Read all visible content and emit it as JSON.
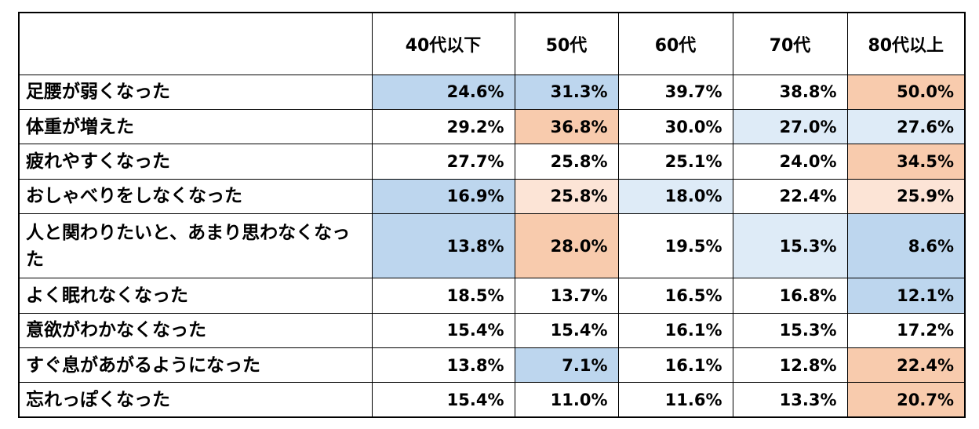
{
  "chart_data": {
    "type": "table",
    "columns": [
      "40代以下",
      "50代",
      "60代",
      "70代",
      "80代以上"
    ],
    "rows": [
      {
        "label": "足腰が弱くなった",
        "values": [
          "24.6%",
          "31.3%",
          "39.7%",
          "38.8%",
          "50.0%"
        ],
        "shade": [
          "blue",
          "blue",
          "",
          "",
          "orange"
        ]
      },
      {
        "label": "体重が増えた",
        "values": [
          "29.2%",
          "36.8%",
          "30.0%",
          "27.0%",
          "27.6%"
        ],
        "shade": [
          "",
          "orange",
          "",
          "lightblue",
          "lightblue"
        ]
      },
      {
        "label": "疲れやすくなった",
        "values": [
          "27.7%",
          "25.8%",
          "25.1%",
          "24.0%",
          "34.5%"
        ],
        "shade": [
          "",
          "",
          "",
          "",
          "orange"
        ]
      },
      {
        "label": "おしゃべりをしなくなった",
        "values": [
          "16.9%",
          "25.8%",
          "18.0%",
          "22.4%",
          "25.9%"
        ],
        "shade": [
          "blue",
          "lightorange",
          "lightblue",
          "",
          "lightorange"
        ]
      },
      {
        "label": "人と関わりたいと、あまり思わなくなった",
        "values": [
          "13.8%",
          "28.0%",
          "19.5%",
          "15.3%",
          "8.6%"
        ],
        "shade": [
          "blue",
          "orange",
          "",
          "lightblue",
          "blue"
        ]
      },
      {
        "label": "よく眠れなくなった",
        "values": [
          "18.5%",
          "13.7%",
          "16.5%",
          "16.8%",
          "12.1%"
        ],
        "shade": [
          "",
          "",
          "",
          "",
          "blue"
        ]
      },
      {
        "label": "意欲がわかなくなった",
        "values": [
          "15.4%",
          "15.4%",
          "16.1%",
          "15.3%",
          "17.2%"
        ],
        "shade": [
          "",
          "",
          "",
          "",
          ""
        ]
      },
      {
        "label": "すぐ息があがるようになった",
        "values": [
          "13.8%",
          "7.1%",
          "16.1%",
          "12.8%",
          "22.4%"
        ],
        "shade": [
          "",
          "blue",
          "",
          "",
          "orange"
        ]
      },
      {
        "label": "忘れっぽくなった",
        "values": [
          "15.4%",
          "11.0%",
          "11.6%",
          "13.3%",
          "20.7%"
        ],
        "shade": [
          "",
          "",
          "",
          "",
          "orange"
        ]
      }
    ],
    "colors": {
      "blue": "#bdd6ee",
      "lightblue": "#deebf7",
      "orange": "#f8cbad",
      "lightorange": "#fce4d6"
    }
  }
}
